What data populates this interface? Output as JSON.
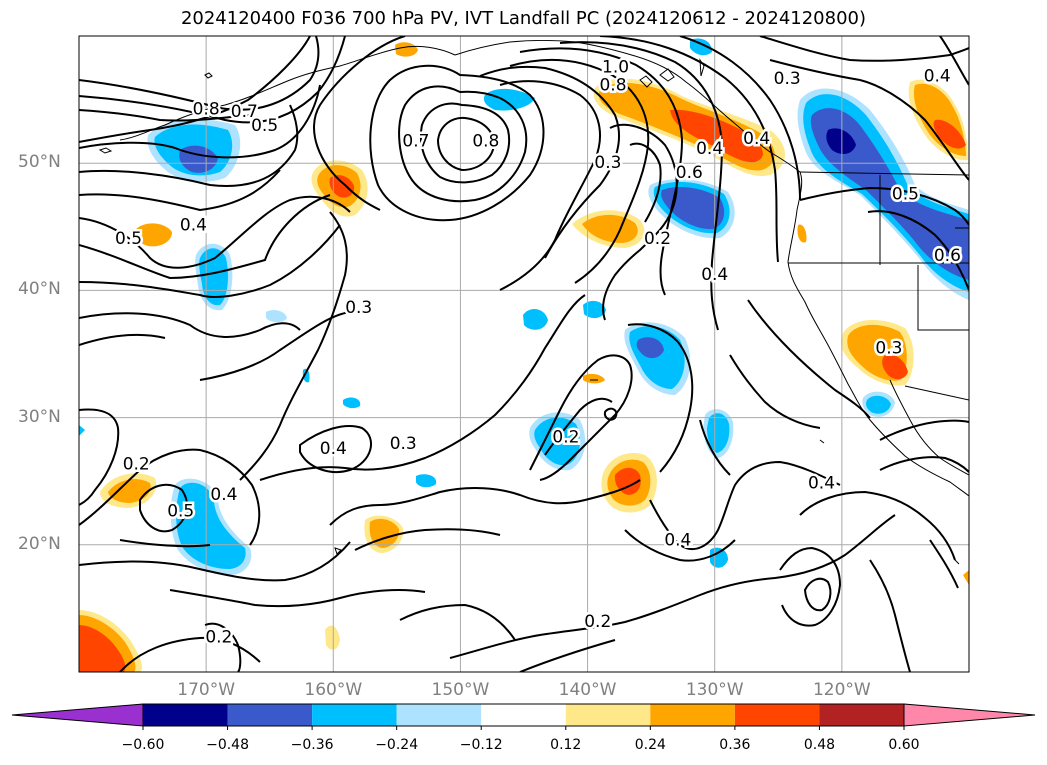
{
  "title": "2024120400 F036 700 hPa PV, IVT Landfall PC (2024120612 - 2024120800)",
  "map": {
    "lon_range": [
      -180,
      -110
    ],
    "lat_range": [
      10,
      60
    ],
    "grid": true,
    "lat_ticks": [
      {
        "value": 50,
        "label": "50°N"
      },
      {
        "value": 40,
        "label": "40°N"
      },
      {
        "value": 30,
        "label": "30°N"
      },
      {
        "value": 20,
        "label": "20°N"
      }
    ],
    "lon_ticks": [
      {
        "value": -170,
        "label": "170°W"
      },
      {
        "value": -160,
        "label": "160°W"
      },
      {
        "value": -150,
        "label": "150°W"
      },
      {
        "value": -140,
        "label": "140°W"
      },
      {
        "value": -130,
        "label": "130°W"
      },
      {
        "value": -120,
        "label": "120°W"
      }
    ],
    "contour_labels": [
      {
        "text": "1.0",
        "lon": -137.8,
        "lat": 57.6
      },
      {
        "text": "0.8",
        "lon": -138.0,
        "lat": 56.2
      },
      {
        "text": "0.3",
        "lon": -124.3,
        "lat": 56.7
      },
      {
        "text": "0.4",
        "lon": -112.5,
        "lat": 56.9
      },
      {
        "text": "0.8",
        "lon": -170.0,
        "lat": 54.3
      },
      {
        "text": "0.7",
        "lon": -167.0,
        "lat": 54.1
      },
      {
        "text": "0.5",
        "lon": -165.4,
        "lat": 53.0
      },
      {
        "text": "0.7",
        "lon": -153.5,
        "lat": 51.8
      },
      {
        "text": "0.8",
        "lon": -148.0,
        "lat": 51.8
      },
      {
        "text": "0.3",
        "lon": -138.4,
        "lat": 50.1
      },
      {
        "text": "0.6",
        "lon": -132.0,
        "lat": 49.3
      },
      {
        "text": "0.4",
        "lon": -130.4,
        "lat": 51.2
      },
      {
        "text": "0.4",
        "lon": -126.7,
        "lat": 52.0
      },
      {
        "text": "0.5",
        "lon": -115.0,
        "lat": 47.6
      },
      {
        "text": "0.6",
        "lon": -111.7,
        "lat": 42.8
      },
      {
        "text": "0.5",
        "lon": -176.1,
        "lat": 44.1
      },
      {
        "text": "0.4",
        "lon": -171.0,
        "lat": 45.2
      },
      {
        "text": "0.2",
        "lon": -134.5,
        "lat": 44.1
      },
      {
        "text": "0.4",
        "lon": -130.0,
        "lat": 41.3
      },
      {
        "text": "0.3",
        "lon": -158.0,
        "lat": 38.7
      },
      {
        "text": "0.3",
        "lon": -116.3,
        "lat": 35.5
      },
      {
        "text": "0.4",
        "lon": -160.0,
        "lat": 27.6
      },
      {
        "text": "0.3",
        "lon": -154.5,
        "lat": 28.0
      },
      {
        "text": "0.2",
        "lon": -141.7,
        "lat": 28.5
      },
      {
        "text": "0.2",
        "lon": -175.5,
        "lat": 26.4
      },
      {
        "text": "0.5",
        "lon": -172.0,
        "lat": 22.7
      },
      {
        "text": "0.4",
        "lon": -168.6,
        "lat": 24.0
      },
      {
        "text": "0.4",
        "lon": -121.6,
        "lat": 24.9
      },
      {
        "text": "0.4",
        "lon": -132.9,
        "lat": 20.4
      },
      {
        "text": "0.2",
        "lon": -169.0,
        "lat": 12.8
      },
      {
        "text": "0.2",
        "lon": -139.2,
        "lat": 14.0
      }
    ]
  },
  "colorbar": {
    "levels": [
      -0.6,
      -0.48,
      -0.36,
      -0.24,
      -0.12,
      0.12,
      0.24,
      0.36,
      0.48,
      0.6
    ],
    "tick_labels": [
      "−0.60",
      "−0.48",
      "−0.36",
      "−0.24",
      "−0.12",
      "0.12",
      "0.24",
      "0.36",
      "0.48",
      "0.60"
    ],
    "colors": [
      "#9b30d0",
      "#00008b",
      "#3a5acc",
      "#00bfff",
      "#aee3ff",
      "#ffffff",
      "#ffe88a",
      "#ffa500",
      "#ff4500",
      "#b22222",
      "#ff88aa"
    ]
  },
  "colors": {
    "grid": "#aaaaaa",
    "contour": "#000000",
    "tick_text": "#808080"
  }
}
